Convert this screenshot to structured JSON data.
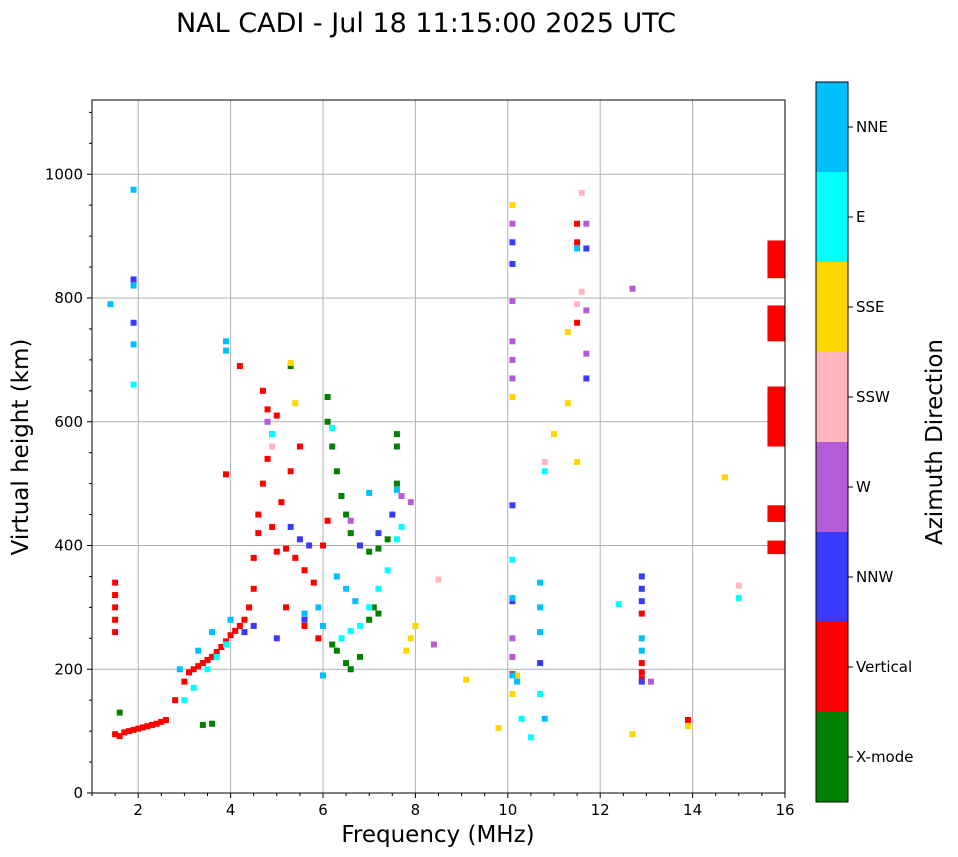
{
  "chart_data": {
    "type": "scatter",
    "title": "NAL CADI - Jul 18 11:15:00 2025 UTC",
    "xlabel": "Frequency (MHz)",
    "ylabel": "Virtual height (km)",
    "xlim": [
      1,
      16
    ],
    "ylim": [
      0,
      1120
    ],
    "x_ticks": [
      2,
      4,
      6,
      8,
      10,
      12,
      14,
      16
    ],
    "y_ticks": [
      0,
      200,
      400,
      600,
      800,
      1000
    ],
    "grid": true,
    "colorbar": {
      "label": "Azimuth Direction",
      "categories": [
        {
          "name": "X-mode",
          "color": "#008000"
        },
        {
          "name": "Vertical",
          "color": "#ff0000"
        },
        {
          "name": "NNW",
          "color": "#3a3aff"
        },
        {
          "name": "W",
          "color": "#b55ad8"
        },
        {
          "name": "SSW",
          "color": "#ffb6c1"
        },
        {
          "name": "SSE",
          "color": "#ffd700"
        },
        {
          "name": "E",
          "color": "#00ffff"
        },
        {
          "name": "NNE",
          "color": "#00bfff"
        }
      ]
    },
    "bar_segments": [
      {
        "color": "red",
        "f0": 15.62,
        "f1": 16.0,
        "h0": 832,
        "h1": 893
      },
      {
        "color": "red",
        "f0": 15.62,
        "f1": 16.0,
        "h0": 730,
        "h1": 788
      },
      {
        "color": "red",
        "f0": 15.62,
        "f1": 16.0,
        "h0": 560,
        "h1": 657
      },
      {
        "color": "red",
        "f0": 15.62,
        "f1": 16.0,
        "h0": 438,
        "h1": 465
      },
      {
        "color": "red",
        "f0": 15.62,
        "f1": 16.0,
        "h0": 386,
        "h1": 408
      }
    ],
    "series": [
      {
        "name": "Vertical",
        "points": [
          [
            1.5,
            95
          ],
          [
            1.6,
            92
          ],
          [
            1.7,
            98
          ],
          [
            1.8,
            100
          ],
          [
            1.9,
            102
          ],
          [
            2.0,
            104
          ],
          [
            2.1,
            106
          ],
          [
            2.2,
            108
          ],
          [
            2.3,
            110
          ],
          [
            2.4,
            112
          ],
          [
            2.5,
            115
          ],
          [
            2.6,
            118
          ],
          [
            2.8,
            150
          ],
          [
            3.0,
            180
          ],
          [
            3.1,
            195
          ],
          [
            3.2,
            200
          ],
          [
            3.3,
            205
          ],
          [
            3.4,
            210
          ],
          [
            3.5,
            215
          ],
          [
            3.6,
            220
          ],
          [
            3.7,
            228
          ],
          [
            3.8,
            236
          ],
          [
            3.9,
            245
          ],
          [
            4.0,
            255
          ],
          [
            4.1,
            262
          ],
          [
            4.2,
            270
          ],
          [
            4.3,
            280
          ],
          [
            4.4,
            300
          ],
          [
            4.5,
            330
          ],
          [
            4.5,
            380
          ],
          [
            4.6,
            420
          ],
          [
            4.6,
            450
          ],
          [
            4.7,
            500
          ],
          [
            4.8,
            540
          ],
          [
            4.9,
            580
          ],
          [
            5.0,
            610
          ],
          [
            4.7,
            650
          ],
          [
            4.8,
            620
          ],
          [
            4.2,
            690
          ],
          [
            3.9,
            515
          ],
          [
            1.5,
            340
          ],
          [
            1.5,
            320
          ],
          [
            1.5,
            300
          ],
          [
            1.5,
            280
          ],
          [
            1.5,
            260
          ],
          [
            5.0,
            390
          ],
          [
            5.2,
            395
          ],
          [
            5.4,
            380
          ],
          [
            5.6,
            360
          ],
          [
            5.8,
            340
          ],
          [
            4.9,
            430
          ],
          [
            5.1,
            470
          ],
          [
            5.3,
            520
          ],
          [
            5.5,
            560
          ],
          [
            5.2,
            300
          ],
          [
            5.6,
            270
          ],
          [
            5.9,
            250
          ],
          [
            6.0,
            400
          ],
          [
            6.1,
            440
          ],
          [
            11.5,
            920
          ],
          [
            11.5,
            890
          ],
          [
            11.5,
            760
          ],
          [
            12.9,
            210
          ],
          [
            12.9,
            195
          ],
          [
            12.9,
            185
          ],
          [
            12.9,
            290
          ],
          [
            13.9,
            118
          ],
          [
            10.1,
            192
          ]
        ]
      },
      {
        "name": "X-mode",
        "points": [
          [
            1.6,
            130
          ],
          [
            3.4,
            110
          ],
          [
            3.6,
            112
          ],
          [
            5.3,
            690
          ],
          [
            6.1,
            640
          ],
          [
            6.1,
            600
          ],
          [
            6.2,
            560
          ],
          [
            6.3,
            520
          ],
          [
            6.4,
            480
          ],
          [
            6.5,
            450
          ],
          [
            6.6,
            420
          ],
          [
            6.8,
            400
          ],
          [
            7.0,
            390
          ],
          [
            7.2,
            395
          ],
          [
            7.4,
            410
          ],
          [
            7.6,
            500
          ],
          [
            7.6,
            580
          ],
          [
            7.6,
            560
          ],
          [
            6.2,
            240
          ],
          [
            6.3,
            230
          ],
          [
            6.5,
            210
          ],
          [
            6.6,
            200
          ],
          [
            6.8,
            220
          ],
          [
            7.0,
            280
          ],
          [
            7.1,
            300
          ],
          [
            7.2,
            290
          ]
        ]
      },
      {
        "name": "NNW",
        "points": [
          [
            1.9,
            830
          ],
          [
            1.9,
            760
          ],
          [
            5.3,
            430
          ],
          [
            5.5,
            410
          ],
          [
            5.7,
            400
          ],
          [
            6.8,
            400
          ],
          [
            7.2,
            420
          ],
          [
            7.5,
            450
          ],
          [
            10.1,
            890
          ],
          [
            10.1,
            855
          ],
          [
            10.1,
            465
          ],
          [
            10.1,
            310
          ],
          [
            10.7,
            210
          ],
          [
            11.7,
            880
          ],
          [
            11.7,
            670
          ],
          [
            12.9,
            350
          ],
          [
            12.9,
            330
          ],
          [
            12.9,
            310
          ],
          [
            12.9,
            180
          ],
          [
            4.3,
            260
          ],
          [
            4.5,
            270
          ],
          [
            5.0,
            250
          ],
          [
            5.6,
            280
          ]
        ]
      },
      {
        "name": "W",
        "points": [
          [
            10.1,
            920
          ],
          [
            10.1,
            795
          ],
          [
            10.1,
            730
          ],
          [
            10.1,
            700
          ],
          [
            10.1,
            670
          ],
          [
            10.1,
            250
          ],
          [
            10.1,
            220
          ],
          [
            11.7,
            920
          ],
          [
            11.7,
            780
          ],
          [
            11.7,
            710
          ],
          [
            13.1,
            180
          ],
          [
            12.7,
            815
          ],
          [
            7.7,
            480
          ],
          [
            7.9,
            470
          ],
          [
            6.6,
            440
          ],
          [
            4.8,
            600
          ],
          [
            8.4,
            240
          ]
        ]
      },
      {
        "name": "SSW",
        "points": [
          [
            4.9,
            560
          ],
          [
            11.6,
            970
          ],
          [
            11.6,
            810
          ],
          [
            10.8,
            535
          ],
          [
            15.0,
            335
          ],
          [
            8.5,
            345
          ],
          [
            11.5,
            790
          ]
        ]
      },
      {
        "name": "SSE",
        "points": [
          [
            10.1,
            950
          ],
          [
            10.1,
            640
          ],
          [
            10.2,
            190
          ],
          [
            10.1,
            160
          ],
          [
            9.8,
            105
          ],
          [
            9.1,
            183
          ],
          [
            8.0,
            270
          ],
          [
            7.9,
            250
          ],
          [
            7.8,
            230
          ],
          [
            5.4,
            630
          ],
          [
            5.3,
            695
          ],
          [
            11.3,
            745
          ],
          [
            11.3,
            630
          ],
          [
            11.0,
            580
          ],
          [
            11.5,
            535
          ],
          [
            12.7,
            95
          ],
          [
            14.7,
            510
          ],
          [
            13.9,
            108
          ]
        ]
      },
      {
        "name": "E",
        "points": [
          [
            1.9,
            660
          ],
          [
            10.1,
            377
          ],
          [
            10.3,
            120
          ],
          [
            10.5,
            90
          ],
          [
            10.7,
            160
          ],
          [
            10.8,
            520
          ],
          [
            12.4,
            305
          ],
          [
            15.0,
            315
          ],
          [
            3.0,
            150
          ],
          [
            3.2,
            170
          ],
          [
            3.5,
            200
          ],
          [
            3.7,
            220
          ],
          [
            3.9,
            240
          ],
          [
            4.9,
            580
          ],
          [
            6.2,
            590
          ],
          [
            6.8,
            270
          ],
          [
            7.0,
            300
          ],
          [
            7.2,
            330
          ],
          [
            7.4,
            360
          ],
          [
            7.6,
            410
          ],
          [
            7.7,
            430
          ],
          [
            6.4,
            250
          ],
          [
            6.6,
            262
          ]
        ]
      },
      {
        "name": "NNE",
        "points": [
          [
            1.9,
            975
          ],
          [
            1.9,
            820
          ],
          [
            1.9,
            725
          ],
          [
            1.4,
            790
          ],
          [
            3.9,
            730
          ],
          [
            3.9,
            715
          ],
          [
            2.9,
            200
          ],
          [
            3.3,
            230
          ],
          [
            3.6,
            260
          ],
          [
            4.0,
            280
          ],
          [
            5.6,
            290
          ],
          [
            5.9,
            300
          ],
          [
            6.0,
            190
          ],
          [
            6.0,
            270
          ],
          [
            6.3,
            350
          ],
          [
            6.5,
            330
          ],
          [
            6.7,
            310
          ],
          [
            7.0,
            485
          ],
          [
            7.6,
            490
          ],
          [
            10.1,
            190
          ],
          [
            10.1,
            315
          ],
          [
            10.7,
            340
          ],
          [
            10.7,
            300
          ],
          [
            10.7,
            260
          ],
          [
            10.8,
            120
          ],
          [
            10.2,
            180
          ],
          [
            11.5,
            880
          ],
          [
            12.9,
            250
          ],
          [
            12.9,
            230
          ]
        ]
      }
    ]
  }
}
